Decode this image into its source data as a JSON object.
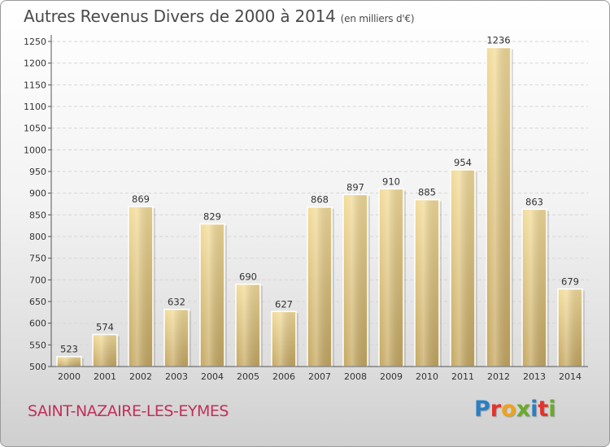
{
  "header": {
    "title": "Autres Revenus Divers de 2000 à 2014",
    "unit": "(en milliers d'€)"
  },
  "footer": {
    "commune": "SAINT-NAZAIRE-LES-EYMES",
    "logo_text": "Proxiti",
    "commune_color": "#c0305a"
  },
  "chart_data": {
    "type": "bar",
    "title": "Autres Revenus Divers de 2000 à 2014",
    "subtitle": "(en milliers d'€)",
    "categories": [
      "2000",
      "2001",
      "2002",
      "2003",
      "2004",
      "2005",
      "2006",
      "2007",
      "2008",
      "2009",
      "2010",
      "2011",
      "2012",
      "2013",
      "2014"
    ],
    "values": [
      523,
      574,
      869,
      632,
      829,
      690,
      627,
      868,
      897,
      910,
      885,
      954,
      1236,
      863,
      679
    ],
    "ylim": [
      500,
      1250
    ],
    "yticks": [
      500,
      550,
      600,
      650,
      700,
      750,
      800,
      850,
      900,
      950,
      1000,
      1050,
      1100,
      1150,
      1200,
      1250
    ],
    "grid": true,
    "bar_color": "#e4c97c"
  }
}
